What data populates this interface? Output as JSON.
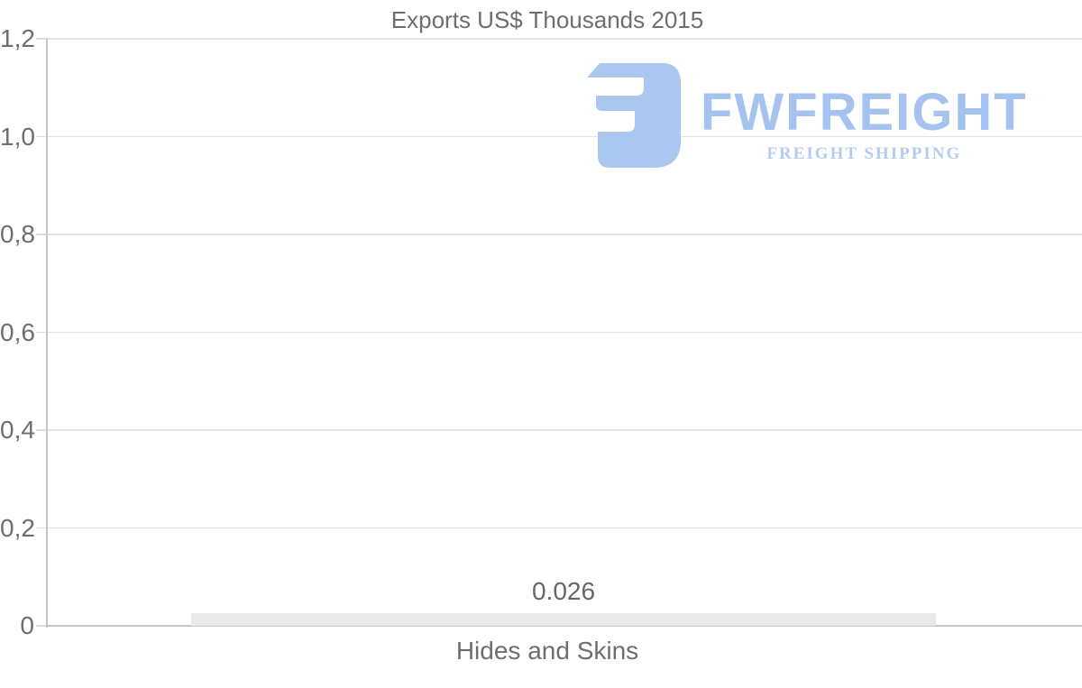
{
  "chart_data": {
    "type": "bar",
    "title": "Exports US$ Thousands 2015",
    "categories": [
      "Hides and Skins"
    ],
    "values": [
      0.026
    ],
    "value_labels": [
      "0.026"
    ],
    "xlabel": "",
    "ylabel": "",
    "ylim": [
      0,
      1.2
    ],
    "y_ticks": [
      0,
      0.2,
      0.4,
      0.6,
      0.8,
      1.0,
      1.2
    ],
    "y_tick_labels": [
      "0",
      "0,2",
      "0,4",
      "0,6",
      "0,8",
      "1,0",
      "1,2"
    ],
    "grid": "horizontal",
    "legend": "none",
    "colors": {
      "bar": "#e9e9e9",
      "text": "#6e6e6e",
      "gridline": "#e3e3e3",
      "axis": "#c5c5c5"
    }
  },
  "watermark": {
    "brand": "FWFREIGHT",
    "tagline": "FREIGHT SHIPPING",
    "icon": "fwfreight-logo-icon",
    "colors": {
      "icon": "#abc7f0",
      "brand_text": "#a6c3ef",
      "tagline_text": "#b5cbf1"
    }
  }
}
